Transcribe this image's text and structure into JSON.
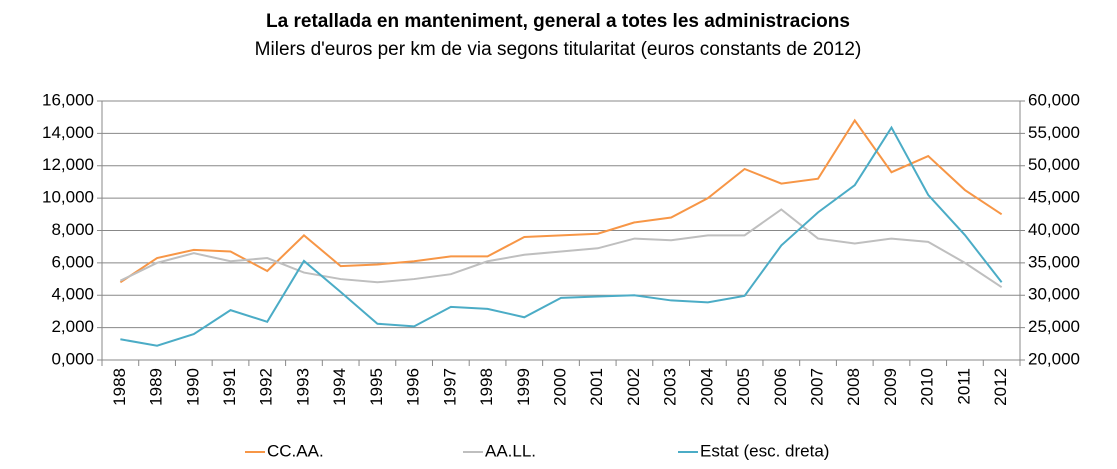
{
  "chart_data": {
    "type": "line",
    "title": "La retallada en manteniment, general a totes les administracions",
    "subtitle": "Milers d'euros per km de via segons titularitat (euros constants de 2012)",
    "categories": [
      "1988",
      "1989",
      "1990",
      "1991",
      "1992",
      "1993",
      "1994",
      "1995",
      "1996",
      "1997",
      "1998",
      "1999",
      "2000",
      "2001",
      "2002",
      "2003",
      "2004",
      "2005",
      "2006",
      "2007",
      "2008",
      "2009",
      "2010",
      "2011",
      "2012"
    ],
    "series": [
      {
        "name": "CC.AA.",
        "color": "#f79646",
        "values": [
          4.8,
          6.3,
          6.8,
          6.7,
          5.5,
          7.7,
          5.8,
          5.9,
          6.1,
          6.4,
          6.4,
          7.6,
          7.7,
          7.8,
          8.5,
          8.8,
          10.0,
          11.8,
          10.9,
          11.2,
          14.8,
          11.6,
          12.6,
          10.5,
          9.0
        ]
      },
      {
        "name": "AA.LL.",
        "color": "#bfbfbf",
        "values": [
          4.9,
          6.0,
          6.6,
          6.1,
          6.3,
          5.4,
          5.0,
          4.8,
          5.0,
          5.3,
          6.1,
          6.5,
          6.7,
          6.9,
          7.5,
          7.4,
          7.7,
          7.7,
          9.3,
          7.5,
          7.2,
          7.5,
          7.3,
          6.0,
          4.5
        ]
      },
      {
        "name": "Estat (esc. dreta)",
        "color": "#4bacc6",
        "axis": "y2",
        "values": [
          23.2,
          22.2,
          24.0,
          27.7,
          25.9,
          35.3,
          30.5,
          25.6,
          25.2,
          28.2,
          27.9,
          26.6,
          29.6,
          29.8,
          30.0,
          29.2,
          28.9,
          29.9,
          37.7,
          42.8,
          47.0,
          55.9,
          45.5,
          39.3,
          32.0
        ]
      }
    ],
    "ylim": [
      0,
      16
    ],
    "yticks": [
      {
        "value": 0,
        "label": "0,000"
      },
      {
        "value": 2,
        "label": "2,000"
      },
      {
        "value": 4,
        "label": "4,000"
      },
      {
        "value": 6,
        "label": "6,000"
      },
      {
        "value": 8,
        "label": "8,000"
      },
      {
        "value": 10,
        "label": "10,000"
      },
      {
        "value": 12,
        "label": "12,000"
      },
      {
        "value": 14,
        "label": "14,000"
      },
      {
        "value": 16,
        "label": "16,000"
      }
    ],
    "y2lim": [
      20,
      60
    ],
    "y2ticks": [
      {
        "value": 20,
        "label": "20,000"
      },
      {
        "value": 25,
        "label": "25,000"
      },
      {
        "value": 30,
        "label": "30,000"
      },
      {
        "value": 35,
        "label": "35,000"
      },
      {
        "value": 40,
        "label": "40,000"
      },
      {
        "value": 45,
        "label": "45,000"
      },
      {
        "value": 50,
        "label": "50,000"
      },
      {
        "value": 55,
        "label": "55,000"
      },
      {
        "value": 60,
        "label": "60,000"
      }
    ],
    "grid": true
  }
}
